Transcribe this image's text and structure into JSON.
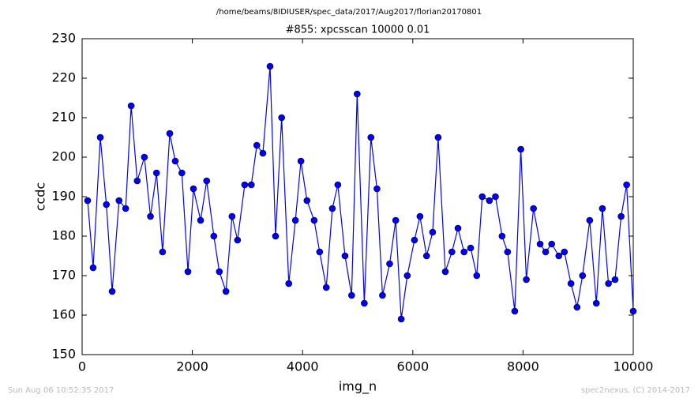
{
  "chart_data": {
    "type": "line",
    "header": "/home/beams/8IDIUSER/spec_data/2017/Aug2017/florian20170801",
    "title": "#855: xpcsscan 10000 0.01",
    "xlabel": "img_n",
    "ylabel": "ccdc",
    "footer_left": "Sun Aug 06 10:52:35 2017",
    "footer_right": "spec2nexus, (C) 2014-2017",
    "x": [
      100,
      200,
      330,
      440,
      545,
      670,
      790,
      890,
      1000,
      1130,
      1240,
      1350,
      1460,
      1590,
      1690,
      1810,
      1920,
      2020,
      2150,
      2260,
      2390,
      2490,
      2610,
      2720,
      2820,
      2950,
      3070,
      3170,
      3280,
      3410,
      3510,
      3620,
      3750,
      3870,
      3970,
      4080,
      4210,
      4310,
      4430,
      4540,
      4640,
      4770,
      4890,
      4990,
      5120,
      5240,
      5350,
      5450,
      5580,
      5690,
      5790,
      5900,
      6030,
      6130,
      6250,
      6360,
      6460,
      6590,
      6710,
      6820,
      6930,
      7050,
      7160,
      7260,
      7390,
      7500,
      7620,
      7720,
      7850,
      7960,
      8060,
      8190,
      8310,
      8410,
      8520,
      8650,
      8750,
      8870,
      8980,
      9080,
      9210,
      9330,
      9440,
      9550,
      9670,
      9780,
      9880,
      10000
    ],
    "series": [
      {
        "name": "ccdc",
        "color": "#0000ff",
        "values": [
          189,
          172,
          205,
          188,
          166,
          189,
          187,
          213,
          194,
          200,
          185,
          196,
          176,
          206,
          199,
          196,
          171,
          192,
          184,
          194,
          180,
          171,
          166,
          185,
          179,
          193,
          193,
          203,
          201,
          223,
          180,
          210,
          168,
          184,
          199,
          189,
          184,
          176,
          167,
          187,
          193,
          175,
          165,
          216,
          163,
          205,
          192,
          165,
          173,
          184,
          159,
          170,
          179,
          185,
          175,
          181,
          205,
          171,
          176,
          182,
          176,
          177,
          170,
          190,
          189,
          190,
          180,
          176,
          161,
          202,
          169,
          187,
          178,
          176,
          178,
          175,
          176,
          168,
          162,
          170,
          184,
          163,
          187,
          168,
          169,
          185,
          193,
          161
        ]
      }
    ],
    "xlim": [
      0,
      10000
    ],
    "xticks": [
      0,
      2000,
      4000,
      6000,
      8000,
      10000
    ],
    "ylim": [
      150,
      230
    ],
    "yticks": [
      150,
      160,
      170,
      180,
      190,
      200,
      210,
      220,
      230
    ]
  }
}
